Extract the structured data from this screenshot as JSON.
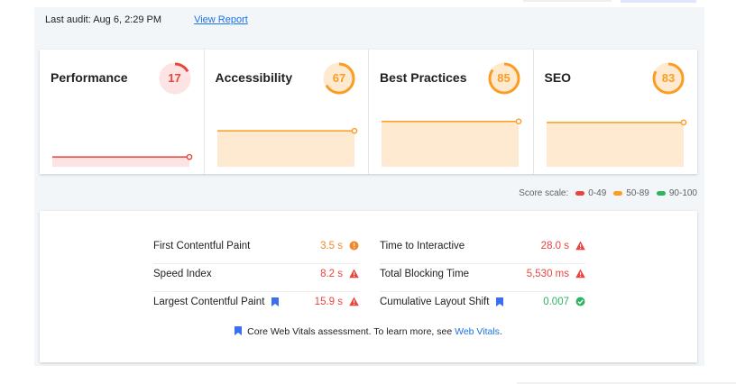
{
  "header": {
    "last_audit": "Last audit: Aug 6, 2:29 PM",
    "view_report": "View Report"
  },
  "scores": [
    {
      "name": "Performance",
      "score": "17",
      "value": 0.17,
      "color": "#e8453c",
      "fill": "#fde4e4",
      "spark_level": 0.17
    },
    {
      "name": "Accessibility",
      "score": "67",
      "value": 0.67,
      "color": "#fa9d22",
      "fill": "#feead1",
      "spark_level": 0.67
    },
    {
      "name": "Best Practices",
      "score": "85",
      "value": 0.85,
      "color": "#fa9d22",
      "fill": "#feead1",
      "spark_level": 0.85
    },
    {
      "name": "SEO",
      "score": "83",
      "value": 0.83,
      "color": "#fa9d22",
      "fill": "#feead1",
      "spark_level": 0.83
    }
  ],
  "score_scale": {
    "label": "Score scale:",
    "ranges": [
      {
        "label": "0-49",
        "color": "#e8453c"
      },
      {
        "label": "50-89",
        "color": "#fa9d22"
      },
      {
        "label": "90-100",
        "color": "#2fb45f"
      }
    ]
  },
  "metrics": {
    "left": [
      {
        "label": "First Contentful Paint",
        "value": "3.5 s",
        "status": "average",
        "color": "#f2882c",
        "core": false
      },
      {
        "label": "Speed Index",
        "value": "8.2 s",
        "status": "fail",
        "color": "#e8453c",
        "core": false
      },
      {
        "label": "Largest Contentful Paint",
        "value": "15.9 s",
        "status": "fail",
        "color": "#e8453c",
        "core": true
      }
    ],
    "right": [
      {
        "label": "Time to Interactive",
        "value": "28.0 s",
        "status": "fail",
        "color": "#e8453c",
        "core": false
      },
      {
        "label": "Total Blocking Time",
        "value": "5,530 ms",
        "status": "fail",
        "color": "#e8453c",
        "core": false
      },
      {
        "label": "Cumulative Layout Shift",
        "value": "0.007",
        "status": "pass",
        "color": "#2fb45f",
        "core": true
      }
    ]
  },
  "footnote": {
    "text": "Core Web Vitals assessment. To learn more, see ",
    "link": "Web Vitals",
    "period": "."
  },
  "colors": {
    "link": "#1a73e8",
    "bookmark": "#3c6ff0"
  }
}
